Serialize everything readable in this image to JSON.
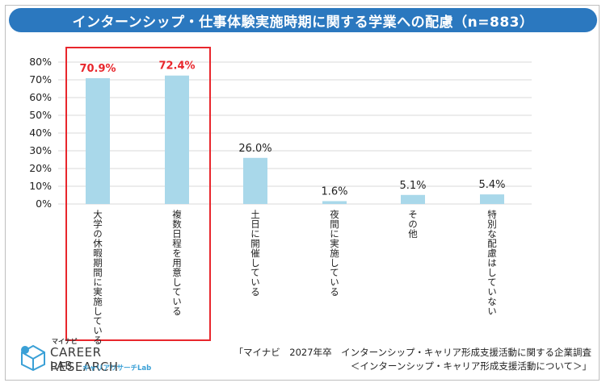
{
  "colors": {
    "title_bg": "#2b78bf",
    "bar": "#a9d8ea",
    "highlight": "#e8262c",
    "highlight_label": "#e8262c",
    "label": "#222222",
    "grid": "#d9d9d9"
  },
  "chart_data": {
    "type": "bar",
    "title": "インターンシップ・仕事体験実施時期に関する学業への配慮（n=883）",
    "categories": [
      "大学の休暇期間に実施している",
      "複数日程を用意している",
      "土日に開催している",
      "夜間に実施している",
      "その他",
      "特別な配慮はしていない"
    ],
    "values": [
      70.9,
      72.4,
      26.0,
      1.6,
      5.1,
      5.4
    ],
    "value_labels": [
      "70.9%",
      "72.4%",
      "26.0%",
      "1.6%",
      "5.1%",
      "5.4%"
    ],
    "highlighted": [
      true,
      true,
      false,
      false,
      false,
      false
    ],
    "yticks": [
      "0%",
      "10%",
      "20%",
      "30%",
      "40%",
      "50%",
      "60%",
      "70%",
      "80%"
    ],
    "ylim": [
      0,
      80
    ],
    "xlabel": "",
    "ylabel": "",
    "grid": true
  },
  "source": {
    "line1": "「マイナビ　2027年卒　インターンシップ・キャリア形成支援活動に関する企業調査",
    "line2": "＜インターンシップ・キャリア形成支援活動について＞」"
  },
  "logo": {
    "brand": "マイナビ",
    "main": "CAREER RESEARCH",
    "sub1": "LAB",
    "sub2": "キャリアリサーチLab"
  }
}
